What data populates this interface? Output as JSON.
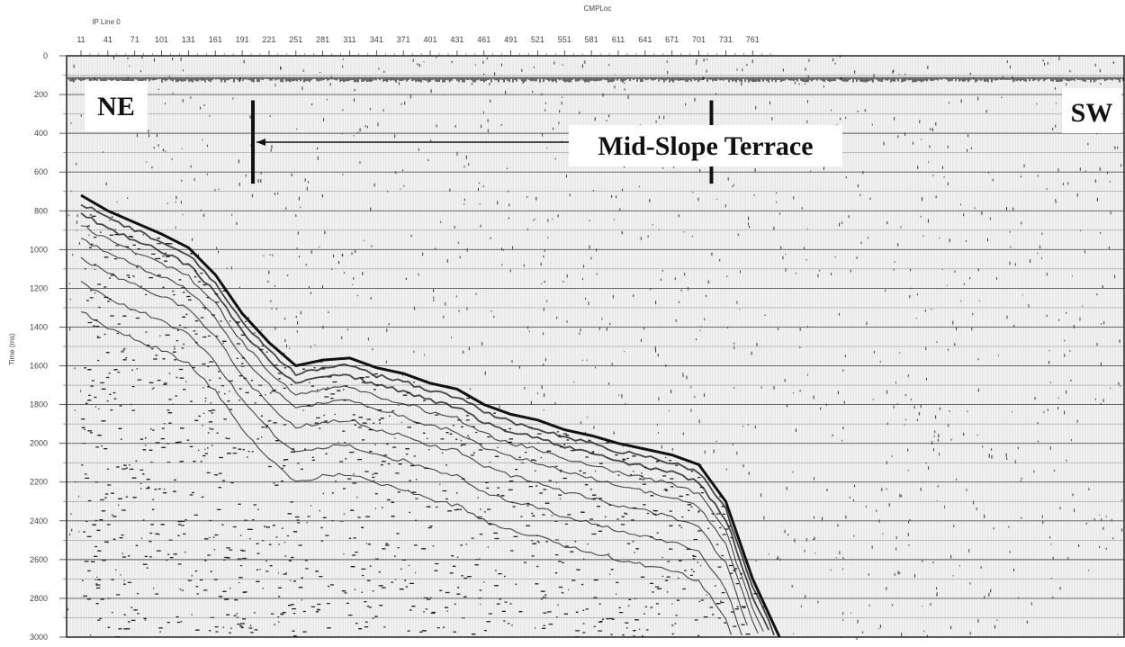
{
  "header": {
    "axis_title": "CMPLoc",
    "line_label": "IP Line 0"
  },
  "x_axis": {
    "ticks": [
      "11",
      "41",
      "71",
      "101",
      "131",
      "161",
      "191",
      "221",
      "251",
      "281",
      "311",
      "341",
      "371",
      "401",
      "431",
      "461",
      "491",
      "521",
      "551",
      "581",
      "611",
      "641",
      "671",
      "701",
      "731",
      "761"
    ],
    "min": 11,
    "max": 791
  },
  "y_axis": {
    "label": "Time (ms)",
    "ticks": [
      "0",
      "200",
      "400",
      "600",
      "800",
      "1000",
      "1200",
      "1400",
      "1600",
      "1800",
      "2000",
      "2200",
      "2400",
      "2600",
      "2800",
      "3000"
    ],
    "min": 0,
    "max": 3000
  },
  "annotations": {
    "left_label": "NE",
    "right_label": "SW",
    "terrace_label": "Mid-Slope Terrace",
    "terrace_start_cmp": 203,
    "terrace_end_cmp": 715,
    "marker_time_top": 230,
    "marker_time_bottom": 660
  },
  "seafloor": {
    "color": "#111111",
    "profile": [
      {
        "cmp": 11,
        "t": 720
      },
      {
        "cmp": 41,
        "t": 800
      },
      {
        "cmp": 71,
        "t": 860
      },
      {
        "cmp": 101,
        "t": 920
      },
      {
        "cmp": 131,
        "t": 990
      },
      {
        "cmp": 161,
        "t": 1130
      },
      {
        "cmp": 191,
        "t": 1330
      },
      {
        "cmp": 221,
        "t": 1480
      },
      {
        "cmp": 251,
        "t": 1600
      },
      {
        "cmp": 281,
        "t": 1570
      },
      {
        "cmp": 311,
        "t": 1560
      },
      {
        "cmp": 341,
        "t": 1610
      },
      {
        "cmp": 371,
        "t": 1640
      },
      {
        "cmp": 401,
        "t": 1690
      },
      {
        "cmp": 431,
        "t": 1720
      },
      {
        "cmp": 461,
        "t": 1800
      },
      {
        "cmp": 491,
        "t": 1850
      },
      {
        "cmp": 521,
        "t": 1880
      },
      {
        "cmp": 551,
        "t": 1930
      },
      {
        "cmp": 581,
        "t": 1960
      },
      {
        "cmp": 611,
        "t": 2000
      },
      {
        "cmp": 641,
        "t": 2030
      },
      {
        "cmp": 671,
        "t": 2060
      },
      {
        "cmp": 701,
        "t": 2110
      },
      {
        "cmp": 731,
        "t": 2300
      },
      {
        "cmp": 761,
        "t": 2700
      },
      {
        "cmp": 791,
        "t": 3000
      }
    ]
  }
}
